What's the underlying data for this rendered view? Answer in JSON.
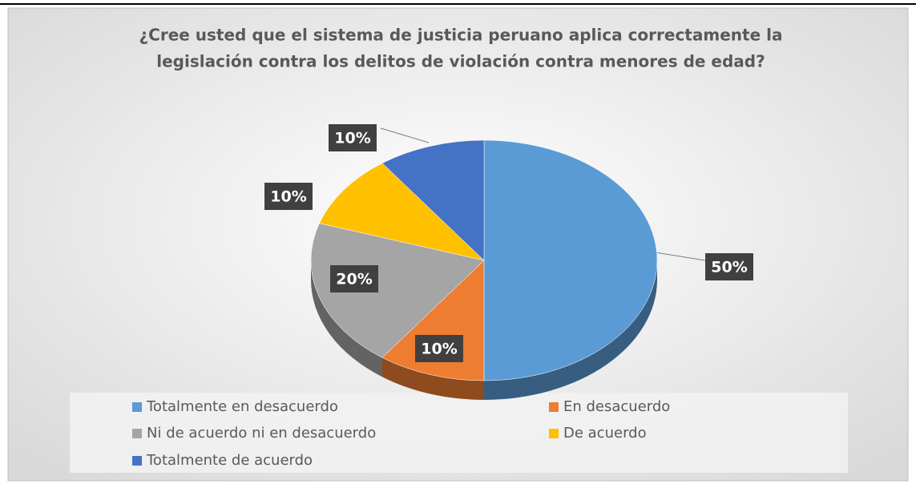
{
  "chart_data": {
    "type": "pie",
    "title": [
      "¿Cree usted que el sistema de justicia peruano aplica correctamente la",
      "legislación contra los  delitos de violación contra menores de edad?"
    ],
    "categories": [
      "Totalmente en desacuerdo",
      "En desacuerdo",
      "Ni de acuerdo ni en desacuerdo",
      "De acuerdo",
      "Totalmente de acuerdo"
    ],
    "values": [
      50,
      10,
      20,
      10,
      10
    ],
    "value_labels": [
      "50%",
      "10%",
      "20%",
      "10%",
      "10%"
    ],
    "colors": [
      "#5b9bd5",
      "#ed7d31",
      "#a5a5a5",
      "#ffc000",
      "#4472c4"
    ],
    "legend": "bottom"
  }
}
